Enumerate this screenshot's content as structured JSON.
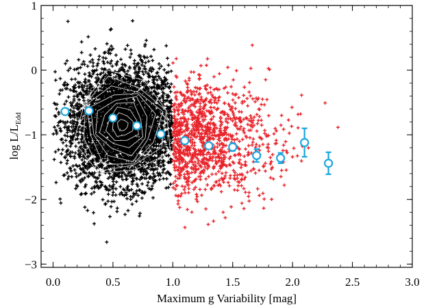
{
  "chart_data": {
    "type": "scatter",
    "title": "",
    "xlabel": "Maximum g Variability [mag]",
    "ylabel": {
      "main": "log L/L",
      "subscript": "Edd"
    },
    "xlim": [
      -0.1,
      3.0
    ],
    "ylim": [
      -3.05,
      1.0
    ],
    "x_ticks": [
      "0.0",
      "0.5",
      "1.0",
      "1.5",
      "2.0",
      "2.5",
      "3.0"
    ],
    "y_ticks": [
      "1",
      "0",
      "−1",
      "−2",
      "−3"
    ],
    "grid": false,
    "legend": "none",
    "colors": {
      "low_variability_points": "#000000",
      "high_variability_points": "#e8232a",
      "density_contours": "#c8c8c8",
      "binned_means": "#1aa6e0"
    },
    "series": [
      {
        "marker": "plus",
        "color": "#000000",
        "x_range": [
          0.0,
          1.0
        ],
        "center": [
          0.58,
          -0.85
        ],
        "spread": [
          0.23,
          0.45
        ],
        "approx_count": 4000
      },
      {
        "marker": "plus",
        "color": "#e8232a",
        "x_range": [
          1.0,
          2.9
        ],
        "center": [
          1.2,
          -1.05
        ],
        "spread": [
          0.35,
          0.45
        ],
        "approx_count": 1100
      },
      {
        "name": "",
        "marker": "open-circle-errorbar",
        "color": "#1aa6e0",
        "points": [
          {
            "x": 0.1,
            "y": -0.64,
            "err": 0.03
          },
          {
            "x": 0.3,
            "y": -0.63,
            "err": 0.03
          },
          {
            "x": 0.5,
            "y": -0.74,
            "err": 0.03
          },
          {
            "x": 0.7,
            "y": -0.86,
            "err": 0.03
          },
          {
            "x": 0.9,
            "y": -0.99,
            "err": 0.03
          },
          {
            "x": 1.1,
            "y": -1.09,
            "err": 0.03
          },
          {
            "x": 1.3,
            "y": -1.17,
            "err": 0.04
          },
          {
            "x": 1.5,
            "y": -1.19,
            "err": 0.06
          },
          {
            "x": 1.7,
            "y": -1.32,
            "err": 0.1
          },
          {
            "x": 1.9,
            "y": -1.36,
            "err": 0.08
          },
          {
            "x": 2.1,
            "y": -1.12,
            "err": 0.22
          },
          {
            "x": 2.3,
            "y": -1.44,
            "err": 0.17
          }
        ]
      }
    ]
  }
}
